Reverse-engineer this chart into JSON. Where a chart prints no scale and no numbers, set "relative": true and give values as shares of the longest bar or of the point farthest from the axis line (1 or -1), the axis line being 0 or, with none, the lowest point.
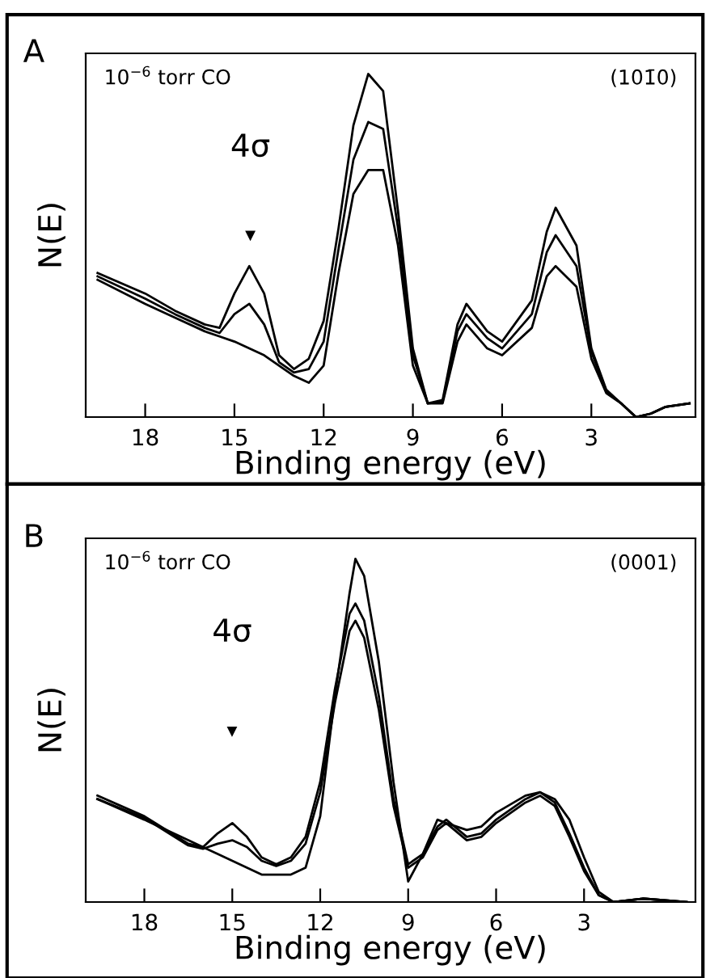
{
  "chart_data": [
    {
      "type": "line",
      "title": "A",
      "xlabel": "Binding energy (eV)",
      "ylabel": "N(E)",
      "relative": true,
      "xlim": [
        20,
        -0.5
      ],
      "xticks": [
        18,
        15,
        12,
        9,
        6,
        3
      ],
      "annotations": [
        "10$^{−6}$ torr CO",
        "(101̄0)",
        "4σ"
      ],
      "series": [
        {
          "color": "#000000",
          "x": [
            19.6,
            18,
            17,
            16,
            15.5,
            15,
            14.5,
            14,
            13.5,
            13,
            12.5,
            12,
            11.5,
            11,
            10.5,
            10,
            9.5,
            9,
            8.5,
            8,
            7.5,
            7.2,
            6.5,
            6,
            5,
            4.5,
            4.2,
            3.5,
            3,
            2.5,
            2,
            1.5,
            1,
            0.5,
            -0.3
          ],
          "values": [
            0.42,
            0.36,
            0.31,
            0.27,
            0.26,
            0.36,
            0.44,
            0.36,
            0.18,
            0.14,
            0.17,
            0.28,
            0.55,
            0.85,
            1.0,
            0.95,
            0.6,
            0.2,
            0.04,
            0.05,
            0.27,
            0.33,
            0.25,
            0.22,
            0.34,
            0.54,
            0.61,
            0.5,
            0.2,
            0.08,
            0.04,
            0.0,
            0.01,
            0.03,
            0.04
          ]
        },
        {
          "color": "#000000",
          "x": [
            19.6,
            18,
            17,
            16,
            15.5,
            15,
            14.5,
            14,
            13.5,
            13,
            12.5,
            12,
            11.5,
            11,
            10.5,
            10,
            9.5,
            9,
            8.5,
            8,
            7.5,
            7.2,
            6.5,
            6,
            5,
            4.5,
            4.2,
            3.5,
            3,
            2.5,
            2,
            1.5,
            1,
            0.5,
            -0.3
          ],
          "values": [
            0.41,
            0.345,
            0.3,
            0.26,
            0.245,
            0.3,
            0.33,
            0.27,
            0.16,
            0.13,
            0.14,
            0.22,
            0.49,
            0.75,
            0.86,
            0.84,
            0.55,
            0.18,
            0.04,
            0.045,
            0.25,
            0.3,
            0.23,
            0.2,
            0.3,
            0.48,
            0.53,
            0.44,
            0.19,
            0.075,
            0.04,
            0.0,
            0.01,
            0.03,
            0.04
          ]
        },
        {
          "color": "#000000",
          "x": [
            19.6,
            18,
            17,
            16,
            15.5,
            15,
            14.5,
            14,
            13.5,
            13,
            12.5,
            12,
            11.5,
            11,
            10.5,
            10,
            9.5,
            9,
            8.5,
            8,
            7.5,
            7.2,
            6.5,
            6,
            5,
            4.5,
            4.2,
            3.5,
            3,
            2.5,
            2,
            1.5,
            1,
            0.5,
            -0.3
          ],
          "values": [
            0.4,
            0.33,
            0.29,
            0.25,
            0.235,
            0.22,
            0.2,
            0.18,
            0.15,
            0.12,
            0.1,
            0.15,
            0.42,
            0.65,
            0.72,
            0.72,
            0.5,
            0.15,
            0.04,
            0.04,
            0.22,
            0.27,
            0.2,
            0.18,
            0.26,
            0.41,
            0.44,
            0.38,
            0.17,
            0.07,
            0.04,
            0.0,
            0.01,
            0.03,
            0.04
          ]
        }
      ]
    },
    {
      "type": "line",
      "title": "B",
      "xlabel": "Binding energy (eV)",
      "ylabel": "N(E)",
      "relative": true,
      "xlim": [
        20,
        -0.8
      ],
      "xticks": [
        18,
        15,
        12,
        9,
        6,
        3
      ],
      "annotations": [
        "10$^{−6}$ torr CO",
        "(0001)",
        "4σ"
      ],
      "series": [
        {
          "color": "#000000",
          "x": [
            19.6,
            18,
            16.5,
            16,
            15.5,
            15,
            14.5,
            14,
            13.5,
            13,
            12.5,
            12,
            11.5,
            11,
            10.8,
            10.5,
            10,
            9.5,
            9,
            8.5,
            8,
            7.7,
            7,
            6.5,
            6,
            5,
            4.5,
            4,
            3.5,
            3,
            2.5,
            2,
            1,
            -0.5
          ],
          "values": [
            0.31,
            0.25,
            0.17,
            0.16,
            0.2,
            0.23,
            0.19,
            0.13,
            0.11,
            0.13,
            0.19,
            0.35,
            0.62,
            0.84,
            0.87,
            0.82,
            0.6,
            0.3,
            0.11,
            0.14,
            0.22,
            0.24,
            0.19,
            0.2,
            0.24,
            0.3,
            0.32,
            0.29,
            0.2,
            0.1,
            0.02,
            0.0,
            0.01,
            0.0
          ]
        },
        {
          "color": "#000000",
          "x": [
            19.6,
            18,
            16.5,
            16,
            15.5,
            15,
            14.5,
            14,
            13.5,
            13,
            12.5,
            12,
            11.5,
            11,
            10.8,
            10.5,
            10,
            9.5,
            9,
            8.5,
            8,
            7.7,
            7,
            6.5,
            6,
            5,
            4.5,
            4,
            3.5,
            3,
            2.5,
            2,
            1,
            -0.5
          ],
          "values": [
            0.3,
            0.245,
            0.165,
            0.155,
            0.17,
            0.18,
            0.16,
            0.12,
            0.105,
            0.12,
            0.17,
            0.32,
            0.58,
            0.79,
            0.82,
            0.77,
            0.56,
            0.28,
            0.1,
            0.13,
            0.21,
            0.23,
            0.18,
            0.19,
            0.23,
            0.29,
            0.31,
            0.28,
            0.19,
            0.09,
            0.02,
            0.0,
            0.01,
            0.0
          ]
        },
        {
          "color": "#000000",
          "x": [
            19.6,
            18,
            16.5,
            16,
            15.5,
            15,
            14.5,
            14,
            13.5,
            13,
            12.5,
            12,
            11.5,
            11,
            10.8,
            10.5,
            10,
            9.5,
            9,
            8.5,
            8,
            7.7,
            7,
            6.5,
            6,
            5,
            4.5,
            4,
            3.5,
            3,
            2.5,
            2,
            1,
            -0.5
          ],
          "values": [
            0.3,
            0.24,
            0.18,
            0.16,
            0.14,
            0.12,
            0.1,
            0.08,
            0.08,
            0.08,
            0.1,
            0.25,
            0.6,
            0.9,
            1.0,
            0.95,
            0.7,
            0.35,
            0.06,
            0.14,
            0.24,
            0.23,
            0.21,
            0.22,
            0.26,
            0.31,
            0.32,
            0.3,
            0.24,
            0.13,
            0.03,
            0.0,
            0.01,
            0.0
          ]
        }
      ]
    }
  ]
}
